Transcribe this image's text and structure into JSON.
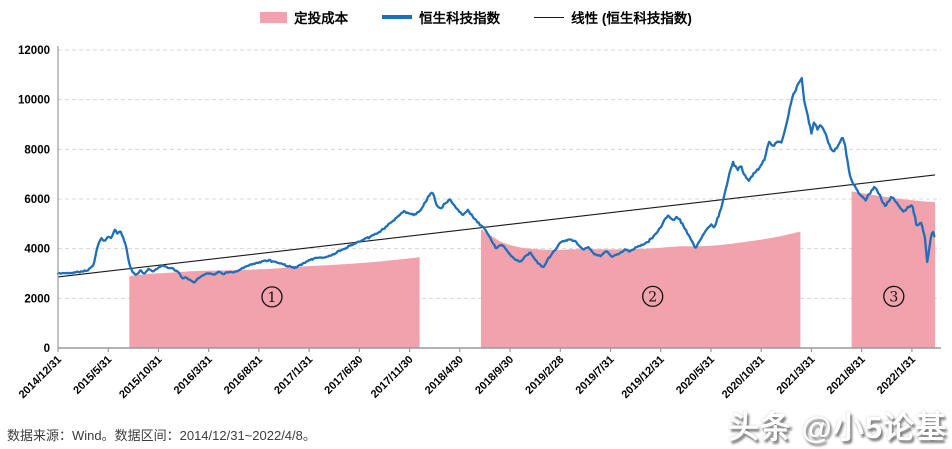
{
  "legend": {
    "items": [
      {
        "label": "定投成本",
        "type": "area",
        "color": "#f1a2ac"
      },
      {
        "label": "恒生科技指数",
        "type": "line",
        "color": "#1e6fba"
      },
      {
        "label": "线性 (恒生科技指数)",
        "type": "trendline",
        "color": "#1a1a1a"
      }
    ]
  },
  "footer": {
    "source_note": "数据来源：Wind。数据区间：2014/12/31~2022/4/8。"
  },
  "watermark": {
    "text": "头条 @小5论基"
  },
  "chart_data": {
    "type": "line",
    "title": "",
    "xlabel": "",
    "ylabel": "",
    "grid": "dashed-horizontal",
    "legend_position": "top-center",
    "colors": {
      "area": "#f1a2ac",
      "line": "#1e6fba",
      "trend": "#1a1a1a",
      "gridline": "#d8d8d8",
      "axis": "#9a9a9a",
      "annotation": "#111111"
    },
    "x_axis": {
      "start_date": "2014/12/31",
      "end_date": "2022/4/8",
      "months_total": 87.3,
      "tick_month_offsets": [
        0,
        5,
        10,
        15,
        20,
        25,
        30,
        35,
        40,
        45,
        50,
        55,
        60,
        65,
        70,
        75,
        80,
        85
      ],
      "tick_labels": [
        "2014/12/31",
        "2015/5/31",
        "2015/10/31",
        "2016/3/31",
        "2016/8/31",
        "2017/1/31",
        "2017/6/30",
        "2017/11/30",
        "2018/4/30",
        "2018/9/30",
        "2019/2/28",
        "2019/7/31",
        "2019/12/31",
        "2020/5/31",
        "2020/10/31",
        "2021/3/31",
        "2021/8/31",
        "2022/1/31"
      ]
    },
    "y_axis": {
      "min": 0,
      "max": 12000,
      "step": 2000,
      "tick_labels": [
        "0",
        "2000",
        "4000",
        "6000",
        "8000",
        "10000",
        "12000"
      ]
    },
    "series": [
      {
        "name": "定投成本",
        "type": "area",
        "color": "#f1a2ac",
        "segments": [
          {
            "label": "①",
            "points": [
              [
                7.1,
                2900
              ],
              [
                9,
                2990
              ],
              [
                11,
                3030
              ],
              [
                13,
                3090
              ],
              [
                15,
                3115
              ],
              [
                17,
                3130
              ],
              [
                19,
                3155
              ],
              [
                21,
                3185
              ],
              [
                23,
                3250
              ],
              [
                25,
                3300
              ],
              [
                27,
                3340
              ],
              [
                29,
                3390
              ],
              [
                31,
                3450
              ],
              [
                33,
                3530
              ],
              [
                35,
                3615
              ],
              [
                36,
                3660
              ]
            ]
          },
          {
            "label": "②",
            "points": [
              [
                42.1,
                4760
              ],
              [
                43,
                4520
              ],
              [
                44,
                4270
              ],
              [
                45,
                4130
              ],
              [
                46,
                4040
              ],
              [
                47,
                3995
              ],
              [
                48,
                3965
              ],
              [
                49,
                3950
              ],
              [
                50,
                3955
              ],
              [
                51,
                3975
              ],
              [
                52,
                3990
              ],
              [
                53,
                3985
              ],
              [
                54,
                3975
              ],
              [
                55,
                3968
              ],
              [
                56,
                3972
              ],
              [
                57,
                3980
              ],
              [
                58,
                3992
              ],
              [
                59,
                4012
              ],
              [
                60,
                4040
              ],
              [
                61,
                4078
              ],
              [
                62,
                4100
              ],
              [
                63,
                4092
              ],
              [
                64,
                4100
              ],
              [
                65,
                4122
              ],
              [
                66,
                4152
              ],
              [
                67,
                4200
              ],
              [
                68,
                4258
              ],
              [
                69,
                4312
              ],
              [
                70,
                4372
              ],
              [
                71,
                4440
              ],
              [
                72,
                4520
              ],
              [
                73,
                4612
              ],
              [
                73.9,
                4700
              ]
            ]
          },
          {
            "label": "③",
            "points": [
              [
                79,
                6300
              ],
              [
                80,
                6230
              ],
              [
                81,
                6160
              ],
              [
                82,
                6100
              ],
              [
                83,
                6040
              ],
              [
                84,
                5990
              ],
              [
                85,
                5945
              ],
              [
                86,
                5905
              ],
              [
                87.3,
                5870
              ]
            ]
          }
        ]
      },
      {
        "name": "恒生科技指数",
        "type": "line",
        "color": "#1e6fba",
        "points": [
          [
            0,
            3000
          ],
          [
            0.5,
            3010
          ],
          [
            1,
            3020
          ],
          [
            1.5,
            3040
          ],
          [
            2,
            3070
          ],
          [
            2.5,
            3090
          ],
          [
            3,
            3140
          ],
          [
            3.5,
            3320
          ],
          [
            4,
            4180
          ],
          [
            4.3,
            4420
          ],
          [
            4.6,
            4280
          ],
          [
            5,
            4500
          ],
          [
            5.3,
            4380
          ],
          [
            5.6,
            4780
          ],
          [
            5.9,
            4620
          ],
          [
            6.2,
            4700
          ],
          [
            6.5,
            4450
          ],
          [
            6.8,
            4050
          ],
          [
            7.1,
            3380
          ],
          [
            7.4,
            3060
          ],
          [
            7.8,
            2950
          ],
          [
            8.2,
            3130
          ],
          [
            8.6,
            2990
          ],
          [
            9,
            3180
          ],
          [
            9.5,
            3090
          ],
          [
            10,
            3260
          ],
          [
            10.5,
            3310
          ],
          [
            11,
            3220
          ],
          [
            11.5,
            3190
          ],
          [
            12,
            3030
          ],
          [
            12.4,
            2790
          ],
          [
            12.8,
            2850
          ],
          [
            13.2,
            2700
          ],
          [
            13.6,
            2660
          ],
          [
            14,
            2810
          ],
          [
            14.5,
            2960
          ],
          [
            15,
            3020
          ],
          [
            15.5,
            2960
          ],
          [
            16,
            3060
          ],
          [
            16.5,
            2990
          ],
          [
            17,
            3070
          ],
          [
            17.5,
            3030
          ],
          [
            18,
            3120
          ],
          [
            18.5,
            3230
          ],
          [
            19,
            3330
          ],
          [
            19.5,
            3390
          ],
          [
            20,
            3430
          ],
          [
            20.5,
            3510
          ],
          [
            21,
            3540
          ],
          [
            21.5,
            3470
          ],
          [
            22,
            3430
          ],
          [
            22.5,
            3360
          ],
          [
            23,
            3290
          ],
          [
            23.5,
            3230
          ],
          [
            24,
            3310
          ],
          [
            24.5,
            3430
          ],
          [
            25,
            3530
          ],
          [
            25.5,
            3610
          ],
          [
            26,
            3650
          ],
          [
            26.5,
            3630
          ],
          [
            27,
            3710
          ],
          [
            27.5,
            3790
          ],
          [
            28,
            3910
          ],
          [
            28.5,
            3990
          ],
          [
            29,
            4110
          ],
          [
            29.5,
            4190
          ],
          [
            30,
            4290
          ],
          [
            30.5,
            4360
          ],
          [
            31,
            4460
          ],
          [
            31.5,
            4560
          ],
          [
            32,
            4690
          ],
          [
            32.5,
            4810
          ],
          [
            33,
            5010
          ],
          [
            33.5,
            5160
          ],
          [
            34,
            5360
          ],
          [
            34.5,
            5510
          ],
          [
            35,
            5430
          ],
          [
            35.5,
            5360
          ],
          [
            36,
            5510
          ],
          [
            36.5,
            5810
          ],
          [
            37,
            6160
          ],
          [
            37.3,
            6280
          ],
          [
            37.7,
            5720
          ],
          [
            38.1,
            5600
          ],
          [
            38.5,
            5820
          ],
          [
            39,
            5960
          ],
          [
            39.5,
            5710
          ],
          [
            40,
            5510
          ],
          [
            40.3,
            5360
          ],
          [
            40.8,
            5560
          ],
          [
            41.3,
            5260
          ],
          [
            41.8,
            5060
          ],
          [
            42.4,
            4830
          ],
          [
            43,
            4450
          ],
          [
            43.6,
            4000
          ],
          [
            44.2,
            4200
          ],
          [
            44.8,
            3850
          ],
          [
            45.4,
            3600
          ],
          [
            46,
            3460
          ],
          [
            46.5,
            3700
          ],
          [
            47,
            3830
          ],
          [
            47.6,
            3500
          ],
          [
            48.3,
            3230
          ],
          [
            48.8,
            3600
          ],
          [
            49.4,
            3900
          ],
          [
            50,
            4250
          ],
          [
            50.5,
            4330
          ],
          [
            51,
            4380
          ],
          [
            51.6,
            4250
          ],
          [
            52.2,
            3960
          ],
          [
            52.8,
            4050
          ],
          [
            53.4,
            3800
          ],
          [
            54,
            3700
          ],
          [
            54.6,
            3900
          ],
          [
            55.2,
            3660
          ],
          [
            55.8,
            3800
          ],
          [
            56.4,
            3950
          ],
          [
            57,
            3900
          ],
          [
            57.6,
            4050
          ],
          [
            58.2,
            4150
          ],
          [
            58.8,
            4300
          ],
          [
            59.4,
            4550
          ],
          [
            60,
            4850
          ],
          [
            60.4,
            5200
          ],
          [
            60.8,
            5330
          ],
          [
            61.2,
            5150
          ],
          [
            61.6,
            5280
          ],
          [
            62,
            5100
          ],
          [
            62.5,
            4750
          ],
          [
            63,
            4350
          ],
          [
            63.5,
            4020
          ],
          [
            64,
            4400
          ],
          [
            64.5,
            4700
          ],
          [
            65,
            5000
          ],
          [
            65.3,
            4850
          ],
          [
            65.8,
            5350
          ],
          [
            66.3,
            6050
          ],
          [
            66.8,
            7000
          ],
          [
            67.2,
            7450
          ],
          [
            67.6,
            7200
          ],
          [
            68,
            7350
          ],
          [
            68.4,
            6900
          ],
          [
            68.8,
            6750
          ],
          [
            69.3,
            7050
          ],
          [
            69.8,
            7250
          ],
          [
            70.3,
            7600
          ],
          [
            70.8,
            8300
          ],
          [
            71.2,
            8100
          ],
          [
            71.6,
            8350
          ],
          [
            72,
            8300
          ],
          [
            72.4,
            8800
          ],
          [
            72.8,
            9600
          ],
          [
            73.2,
            10200
          ],
          [
            73.6,
            10500
          ],
          [
            74,
            10950
          ],
          [
            74.3,
            9900
          ],
          [
            74.7,
            9200
          ],
          [
            75,
            8700
          ],
          [
            75.3,
            9100
          ],
          [
            75.6,
            8800
          ],
          [
            76,
            9000
          ],
          [
            76.4,
            8600
          ],
          [
            76.8,
            8200
          ],
          [
            77.2,
            7900
          ],
          [
            77.6,
            8100
          ],
          [
            78,
            8500
          ],
          [
            78.3,
            8300
          ],
          [
            78.6,
            7500
          ],
          [
            78.9,
            6800
          ],
          [
            79.2,
            6600
          ],
          [
            79.6,
            6300
          ],
          [
            80,
            6100
          ],
          [
            80.4,
            5950
          ],
          [
            80.8,
            6250
          ],
          [
            81.3,
            6480
          ],
          [
            81.8,
            6150
          ],
          [
            82.3,
            5680
          ],
          [
            82.7,
            5950
          ],
          [
            83.1,
            6080
          ],
          [
            83.6,
            5800
          ],
          [
            84.1,
            5480
          ],
          [
            84.6,
            5650
          ],
          [
            85,
            5760
          ],
          [
            85.3,
            5300
          ],
          [
            85.5,
            4870
          ],
          [
            85.9,
            5100
          ],
          [
            86.3,
            4470
          ],
          [
            86.5,
            3430
          ],
          [
            86.7,
            3900
          ],
          [
            86.9,
            4500
          ],
          [
            87.1,
            4700
          ],
          [
            87.3,
            4430
          ]
        ]
      },
      {
        "name": "线性 (恒生科技指数)",
        "type": "trendline",
        "color": "#1a1a1a",
        "points": [
          [
            0,
            2860
          ],
          [
            87.3,
            6970
          ]
        ]
      }
    ],
    "annotations": [
      {
        "text": "1",
        "glyph": "①",
        "month": 21.3,
        "value": 2060
      },
      {
        "text": "2",
        "glyph": "②",
        "month": 59.2,
        "value": 2080
      },
      {
        "text": "3",
        "glyph": "③",
        "month": 83.2,
        "value": 2080
      }
    ]
  }
}
